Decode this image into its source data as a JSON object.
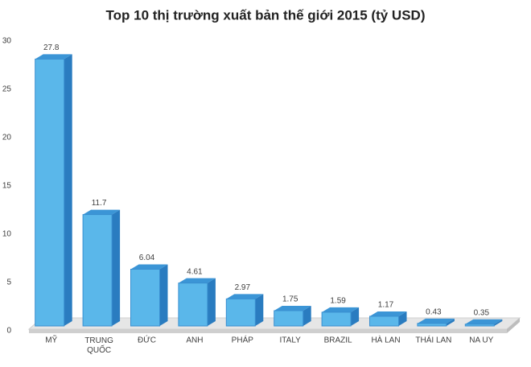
{
  "chart_data": {
    "type": "bar3d",
    "title": "Top 10 thị trường xuất bản thế giới 2015 (tỷ USD)",
    "categories": [
      "MỸ",
      "TRUNG QUỐC",
      "ĐỨC",
      "ANH",
      "PHÁP",
      "ITALY",
      "BRAZIL",
      "HÀ LAN",
      "THÁI LAN",
      "NA UY"
    ],
    "values": [
      27.8,
      11.7,
      6.04,
      4.61,
      2.97,
      1.75,
      1.59,
      1.17,
      0.43,
      0.35
    ],
    "color": "#5ab7ea",
    "ylim": [
      0,
      30
    ],
    "yticks": [
      0,
      5,
      10,
      15,
      20,
      25,
      30
    ]
  }
}
